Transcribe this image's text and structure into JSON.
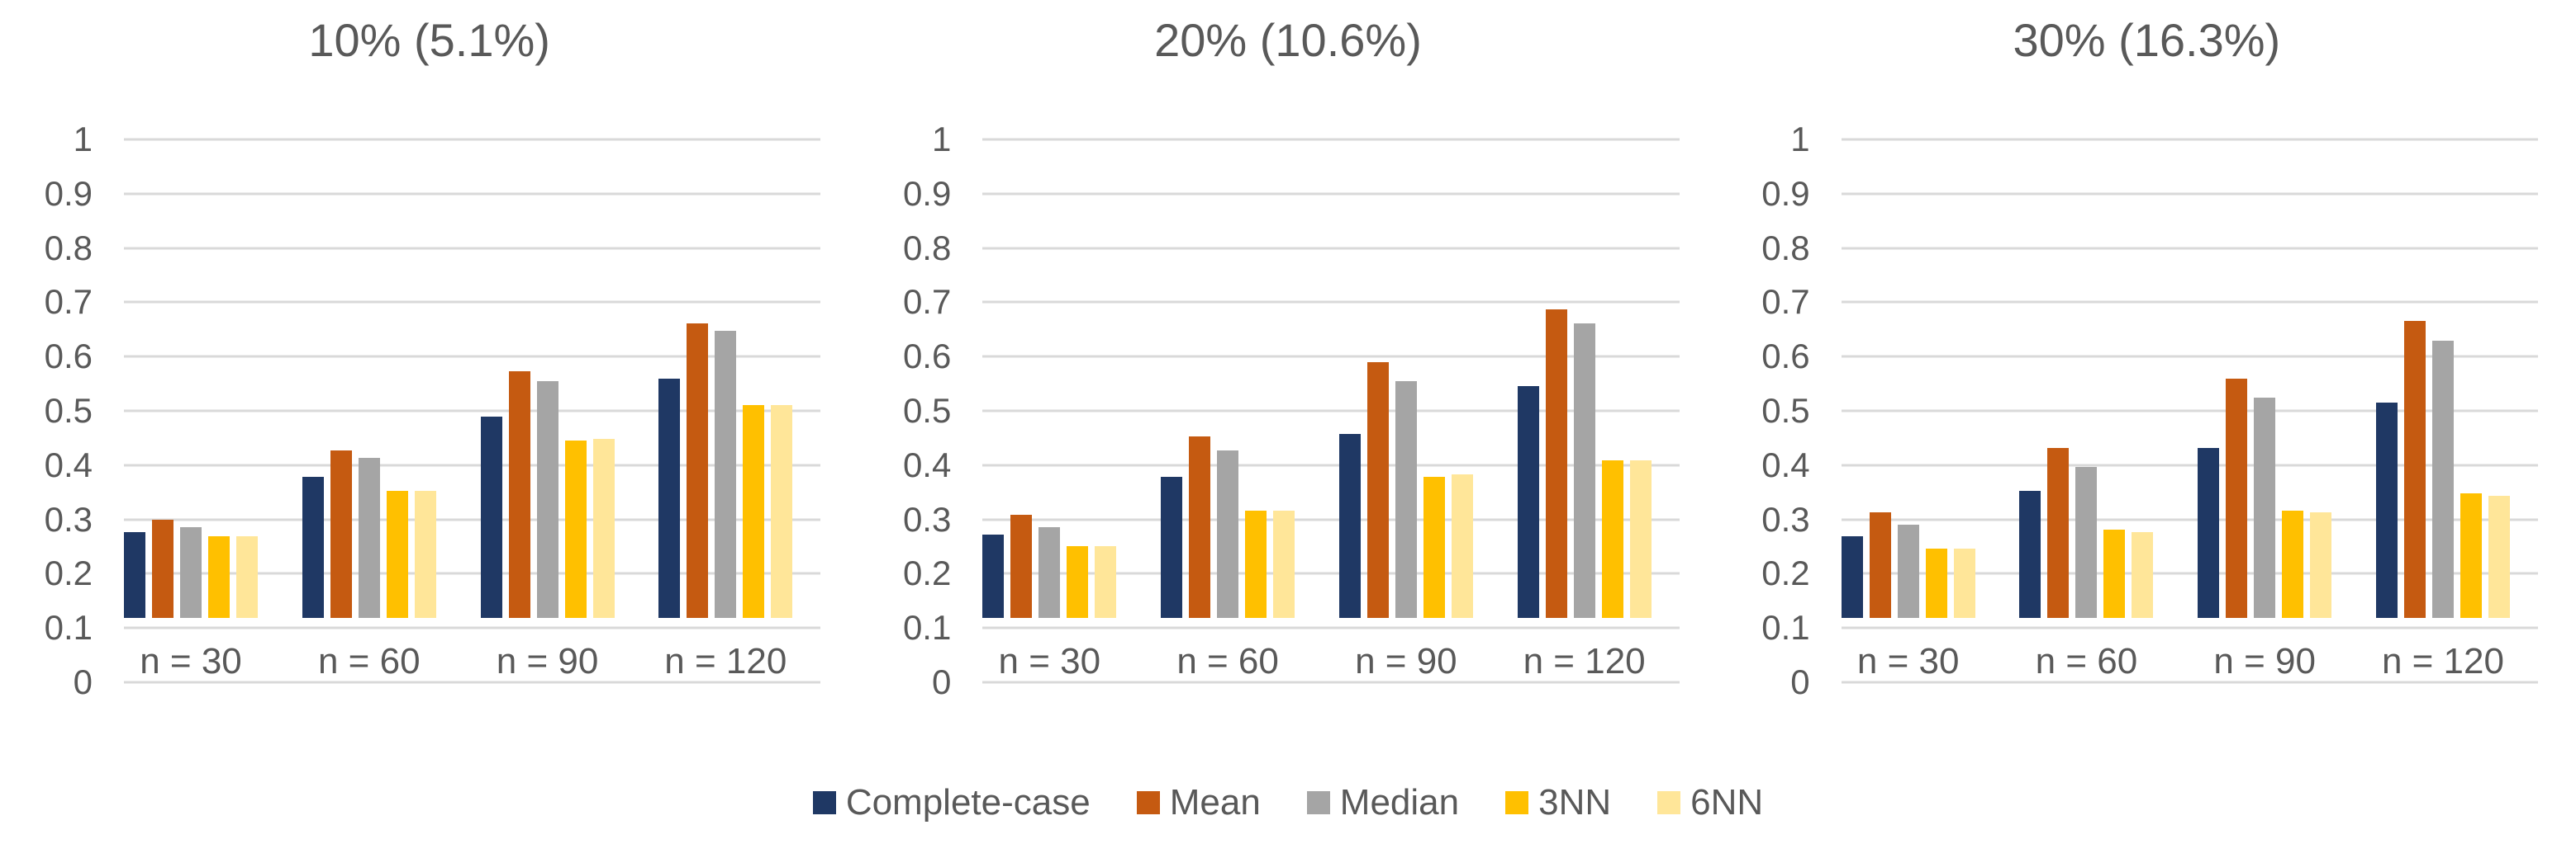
{
  "colors": {
    "background": "#FFFFFF",
    "text": "#595959",
    "gridline": "#D9D9D9",
    "axis_line": "#D9D9D9",
    "complete_case": "#1F3864",
    "mean": "#C55A11",
    "median": "#A5A5A5",
    "knn3": "#FFC000",
    "knn6": "#FFE699"
  },
  "legend": {
    "position": "bottom-center",
    "items": [
      {
        "label": "Complete-case",
        "color": "#1F3864"
      },
      {
        "label": "Mean",
        "color": "#C55A11"
      },
      {
        "label": "Median",
        "color": "#A5A5A5"
      },
      {
        "label": "3NN",
        "color": "#FFC000"
      },
      {
        "label": "6NN",
        "color": "#FFE699"
      }
    ]
  },
  "chart_data": [
    {
      "type": "bar",
      "title": "10% (5.1%)",
      "categories": [
        "n = 30",
        "n = 60",
        "n = 90",
        "n = 120"
      ],
      "series": [
        {
          "name": "Complete-case",
          "color": "#1F3864",
          "values": [
            0.18,
            0.295,
            0.42,
            0.5
          ]
        },
        {
          "name": "Mean",
          "color": "#C55A11",
          "values": [
            0.205,
            0.35,
            0.515,
            0.615
          ]
        },
        {
          "name": "Median",
          "color": "#A5A5A5",
          "values": [
            0.19,
            0.335,
            0.495,
            0.6
          ]
        },
        {
          "name": "3NN",
          "color": "#FFC000",
          "values": [
            0.17,
            0.265,
            0.37,
            0.445
          ]
        },
        {
          "name": "6NN",
          "color": "#FFE699",
          "values": [
            0.17,
            0.265,
            0.375,
            0.445
          ]
        }
      ],
      "xlabel": "",
      "ylabel": "",
      "ylim": [
        0,
        1
      ],
      "yticks": [
        "1",
        "0.9",
        "0.8",
        "0.7",
        "0.6",
        "0.5",
        "0.4",
        "0.3",
        "0.2",
        "0.1",
        "0"
      ],
      "grid": true
    },
    {
      "type": "bar",
      "title": "20% (10.6%)",
      "categories": [
        "n = 30",
        "n = 60",
        "n = 90",
        "n = 120"
      ],
      "series": [
        {
          "name": "Complete-case",
          "color": "#1F3864",
          "values": [
            0.175,
            0.295,
            0.385,
            0.485
          ]
        },
        {
          "name": "Mean",
          "color": "#C55A11",
          "values": [
            0.215,
            0.38,
            0.535,
            0.645
          ]
        },
        {
          "name": "Median",
          "color": "#A5A5A5",
          "values": [
            0.19,
            0.35,
            0.495,
            0.615
          ]
        },
        {
          "name": "3NN",
          "color": "#FFC000",
          "values": [
            0.15,
            0.225,
            0.295,
            0.33
          ]
        },
        {
          "name": "6NN",
          "color": "#FFE699",
          "values": [
            0.15,
            0.225,
            0.3,
            0.33
          ]
        }
      ],
      "xlabel": "",
      "ylabel": "",
      "ylim": [
        0,
        1
      ],
      "yticks": [
        "1",
        "0.9",
        "0.8",
        "0.7",
        "0.6",
        "0.5",
        "0.4",
        "0.3",
        "0.2",
        "0.1",
        "0"
      ],
      "grid": true
    },
    {
      "type": "bar",
      "title": "30% (16.3%)",
      "categories": [
        "n = 30",
        "n = 60",
        "n = 90",
        "n = 120"
      ],
      "series": [
        {
          "name": "Complete-case",
          "color": "#1F3864",
          "values": [
            0.17,
            0.265,
            0.355,
            0.45
          ]
        },
        {
          "name": "Mean",
          "color": "#C55A11",
          "values": [
            0.22,
            0.355,
            0.5,
            0.62
          ]
        },
        {
          "name": "Median",
          "color": "#A5A5A5",
          "values": [
            0.195,
            0.315,
            0.46,
            0.58
          ]
        },
        {
          "name": "3NN",
          "color": "#FFC000",
          "values": [
            0.145,
            0.185,
            0.225,
            0.26
          ]
        },
        {
          "name": "6NN",
          "color": "#FFE699",
          "values": [
            0.145,
            0.18,
            0.22,
            0.255
          ]
        }
      ],
      "xlabel": "",
      "ylabel": "",
      "ylim": [
        0,
        1
      ],
      "yticks": [
        "1",
        "0.9",
        "0.8",
        "0.7",
        "0.6",
        "0.5",
        "0.4",
        "0.3",
        "0.2",
        "0.1",
        "0"
      ],
      "grid": true
    }
  ]
}
